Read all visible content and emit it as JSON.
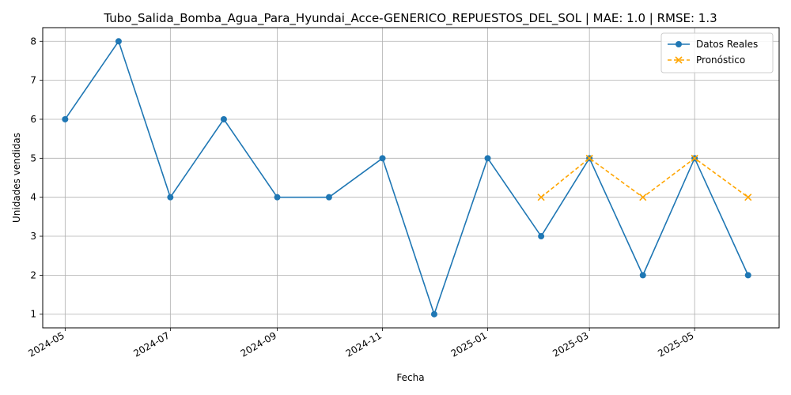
{
  "chart_data": {
    "type": "line",
    "title": "Tubo_Salida_Bomba_Agua_Para_Hyundai_Acce-GENERICO_REPUESTOS_DEL_SOL | MAE: 1.0 | RMSE: 1.3",
    "xlabel": "Fecha",
    "ylabel": "Unidades vendidas",
    "x_ticks": [
      "2024-05",
      "2024-07",
      "2024-09",
      "2024-11",
      "2025-01",
      "2025-03",
      "2025-05"
    ],
    "y_ticks": [
      1,
      2,
      3,
      4,
      5,
      6,
      7,
      8
    ],
    "ylim": [
      0.65,
      8.35
    ],
    "xlim": [
      "2024-04-18",
      "2025-06-19"
    ],
    "grid": true,
    "legend_position": "top-right",
    "series": [
      {
        "name": "Datos Reales",
        "color": "#1f77b4",
        "style": "solid",
        "marker": "circle",
        "x": [
          "2024-05-01",
          "2024-06-01",
          "2024-07-01",
          "2024-08-01",
          "2024-09-01",
          "2024-10-01",
          "2024-11-01",
          "2024-12-01",
          "2025-01-01",
          "2025-02-01",
          "2025-03-01",
          "2025-04-01",
          "2025-05-01",
          "2025-06-01"
        ],
        "values": [
          6,
          8,
          4,
          6,
          4,
          4,
          5,
          1,
          5,
          3,
          5,
          2,
          5,
          2
        ]
      },
      {
        "name": "Pronóstico",
        "color": "#ffa500",
        "style": "dashed",
        "marker": "x",
        "x": [
          "2025-02-01",
          "2025-03-01",
          "2025-04-01",
          "2025-05-01",
          "2025-06-01"
        ],
        "values": [
          4,
          5,
          4,
          5,
          4
        ]
      }
    ]
  }
}
